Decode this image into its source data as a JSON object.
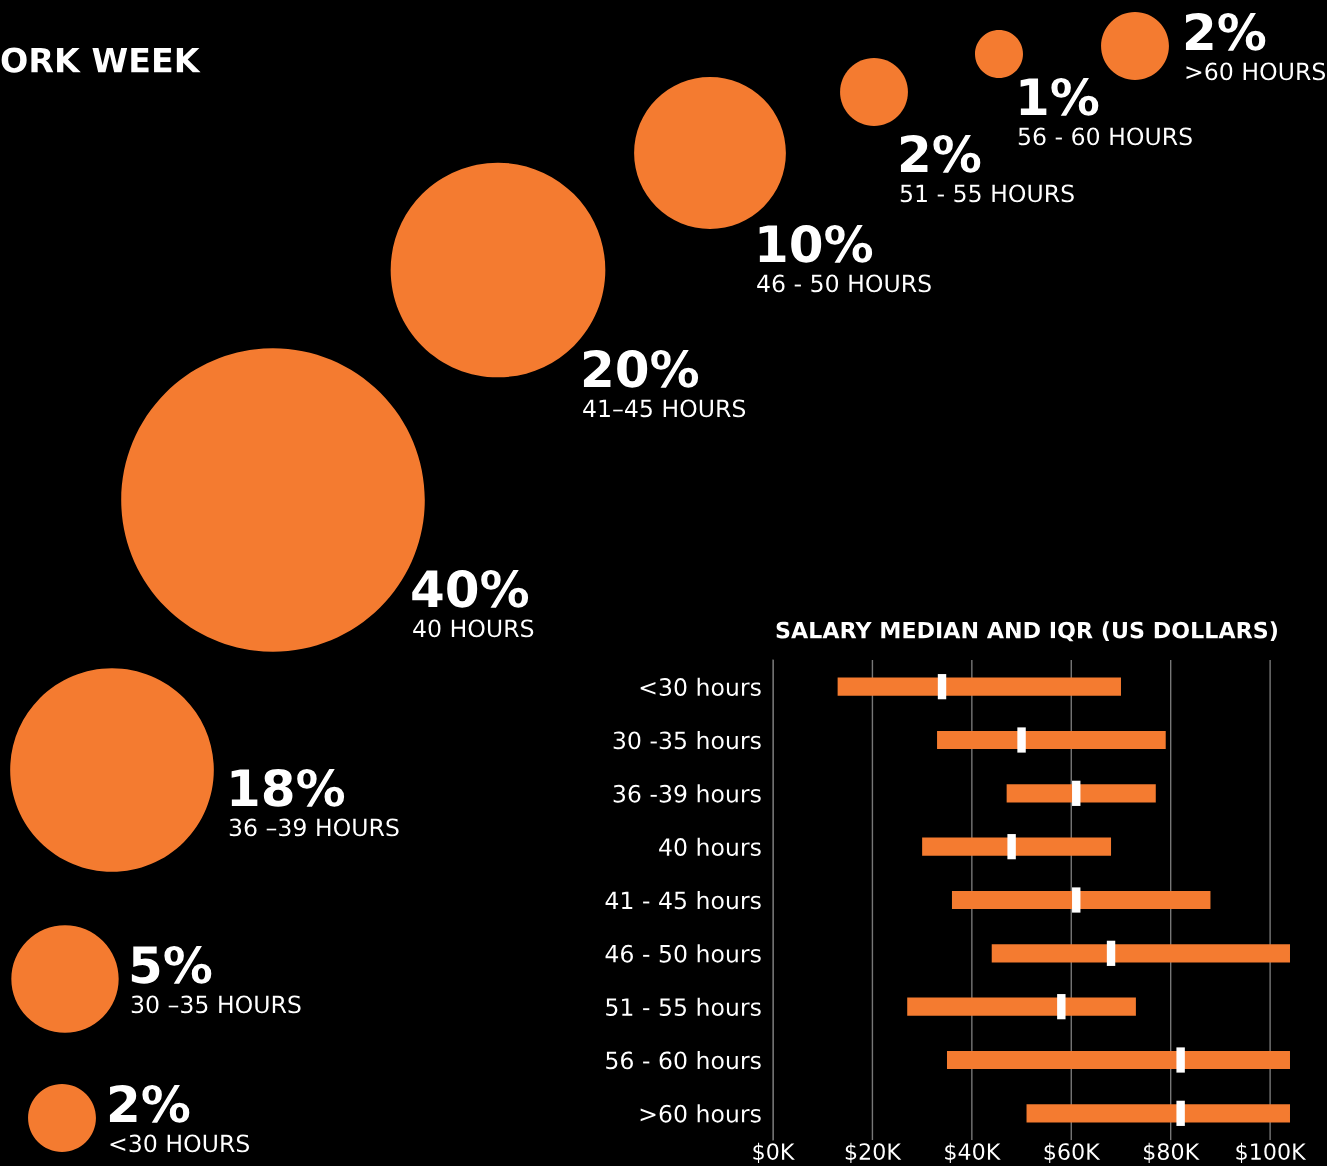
{
  "chart_data": [
    {
      "type": "other",
      "title": "ORK WEEK",
      "categories": [
        "<30 HOURS",
        "30 –35 HOURS",
        "36 –39 HOURS",
        "40 HOURS",
        "41–45 HOURS",
        "46 - 50 HOURS",
        "51 - 55 HOURS",
        "56 - 60 HOURS",
        ">60 HOURS"
      ],
      "values": [
        2,
        5,
        18,
        40,
        20,
        10,
        2,
        1,
        2
      ],
      "value_labels": [
        "2%",
        "5%",
        "18%",
        "40%",
        "20%",
        "10%",
        "2%",
        "1%",
        "2%"
      ],
      "color": "#f47b30"
    },
    {
      "type": "bar",
      "orientation": "horizontal",
      "title": "SALARY MEDIAN AND IQR (US DOLLARS)",
      "categories": [
        "<30 hours",
        "30 -35 hours",
        "36 -39 hours",
        "40 hours",
        "41 - 45 hours",
        "46 - 50 hours",
        "51 - 55 hours",
        "56 - 60 hours",
        ">60 hours"
      ],
      "series": [
        {
          "type": "bar",
          "color": "#f47b30",
          "base": [
            13,
            33,
            47,
            30,
            36,
            44,
            27,
            35,
            51
          ],
          "values": [
            57,
            46,
            30,
            38,
            52,
            60,
            46,
            69,
            53
          ]
        },
        {
          "type": "scatter",
          "color": "#ffffff",
          "values": [
            34,
            50,
            61,
            48,
            61,
            68,
            58,
            82,
            82
          ]
        }
      ],
      "xlim": [
        0,
        104
      ],
      "xticks": [
        {
          "value": 0,
          "label": "$0K"
        },
        {
          "value": 20,
          "label": "$20K"
        },
        {
          "value": 40,
          "label": "$40K"
        },
        {
          "value": 60,
          "label": "$60K"
        },
        {
          "value": 80,
          "label": "$80K"
        },
        {
          "value": 100,
          "label": "$100K"
        }
      ],
      "grid": "x"
    }
  ]
}
